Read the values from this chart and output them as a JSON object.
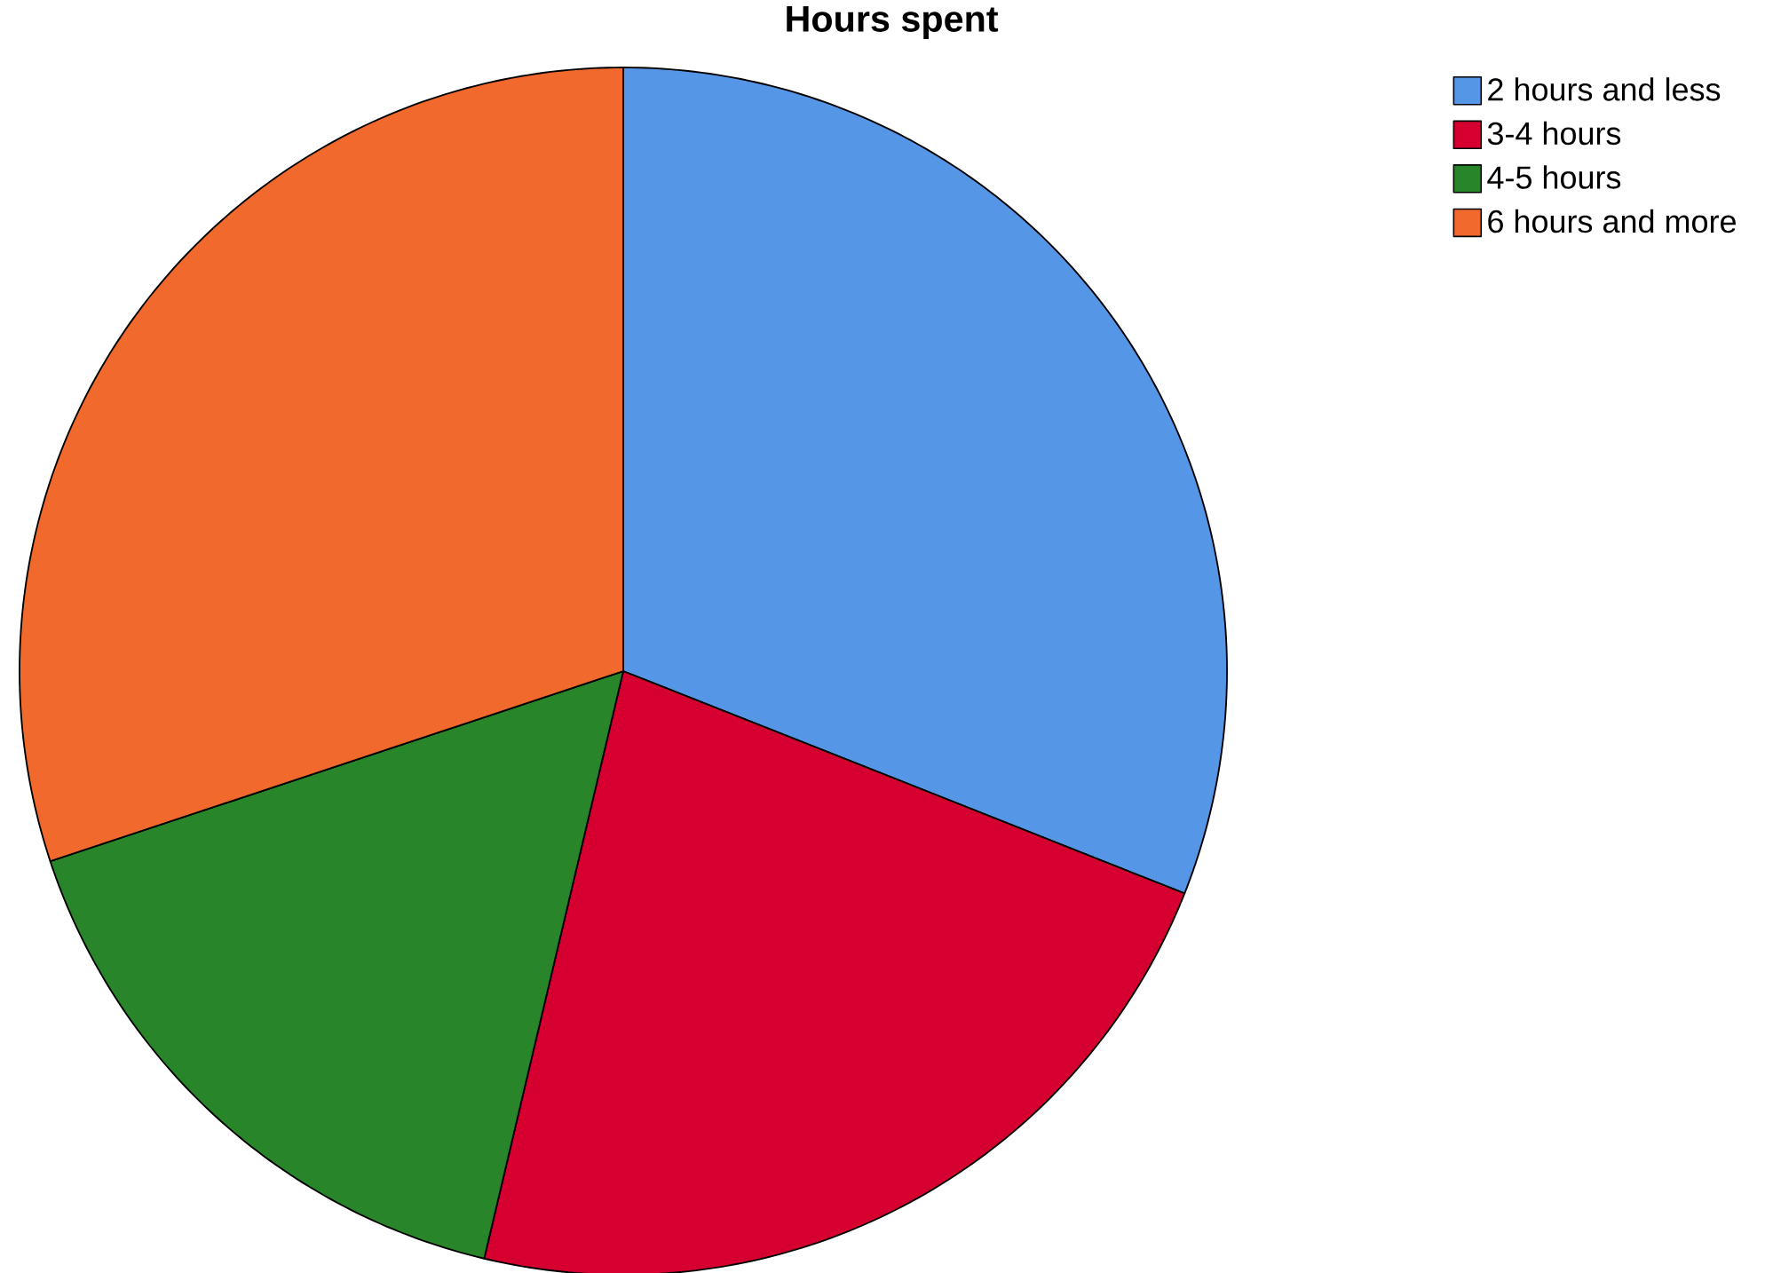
{
  "chart_data": {
    "type": "pie",
    "title": "Hours spent",
    "categories": [
      "2 hours and less",
      "3-4 hours",
      "4-5 hours",
      "6 hours and more"
    ],
    "values": [
      31,
      22.7,
      16.2,
      30.1
    ],
    "colors": [
      "#5596e6",
      "#d5002f",
      "#298529",
      "#f1692c"
    ],
    "legend": "top right"
  }
}
